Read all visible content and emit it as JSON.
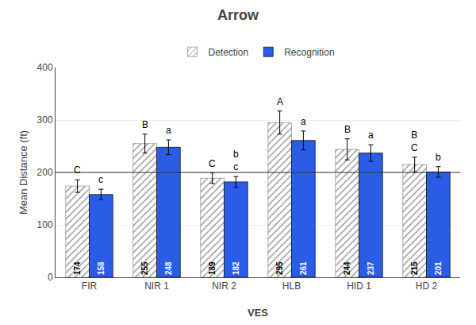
{
  "chart_data": {
    "type": "bar",
    "title": "Arrow",
    "xlabel": "VES",
    "ylabel": "Mean Distance (ft)",
    "categories": [
      "FIR",
      "NIR 1",
      "NIR 2",
      "HLB",
      "HID 1",
      "HD 2"
    ],
    "series": [
      {
        "name": "Detection",
        "color": "#f0f0f0",
        "values": [
          174,
          255,
          189,
          295,
          244,
          215
        ],
        "errors": [
          12,
          18,
          10,
          22,
          20,
          14
        ],
        "labels": [
          "C",
          "B",
          "C",
          "A",
          "B",
          "B\nC"
        ]
      },
      {
        "name": "Recognition",
        "color": "#2b5ce6",
        "values": [
          158,
          248,
          182,
          261,
          237,
          201
        ],
        "errors": [
          10,
          14,
          10,
          18,
          16,
          10
        ],
        "labels": [
          "c",
          "a",
          "b\nc",
          "a",
          "a",
          "b"
        ]
      }
    ],
    "reference_line": 200,
    "ylim": [
      0,
      400
    ],
    "yticks": [
      0,
      100,
      200,
      300,
      400
    ],
    "grid": true,
    "legend": "top",
    "data_labels": true
  }
}
